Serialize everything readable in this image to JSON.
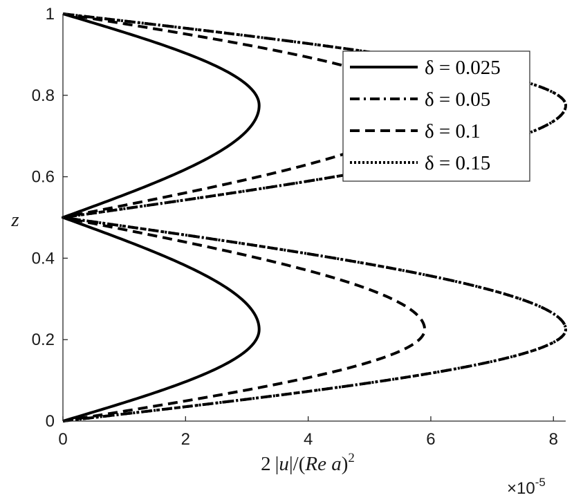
{
  "chart_data": {
    "type": "line",
    "title": "",
    "xlabel": "2|u|/(Re a)^2",
    "ylabel": "z",
    "x_multiplier_label": "×10",
    "x_multiplier_exponent": "-5",
    "xlim": [
      0,
      8.2
    ],
    "ylim": [
      0,
      1
    ],
    "xticks": [
      0,
      2,
      4,
      6,
      8
    ],
    "yticks": [
      0,
      0.2,
      0.4,
      0.6,
      0.8,
      1
    ],
    "grid": false,
    "legend_position": "top-right",
    "colors": {
      "line": "#000000",
      "axis": "#262626"
    },
    "series": [
      {
        "name": "δ = 0.025",
        "style": "solid",
        "peak_lower": {
          "x": 3.2,
          "z": 0.225
        },
        "peak_upper": {
          "x": 3.2,
          "z": 0.775
        }
      },
      {
        "name": "δ = 0.05",
        "style": "dashdot",
        "peak_lower": {
          "x": 8.2,
          "z": 0.225
        },
        "peak_upper": {
          "x": 8.2,
          "z": 0.775
        }
      },
      {
        "name": "δ = 0.1",
        "style": "dashed",
        "peak_lower": {
          "x": 5.9,
          "z": 0.225
        },
        "peak_upper": {
          "x": 5.9,
          "z": 0.775
        }
      },
      {
        "name": "δ = 0.15",
        "style": "dotted",
        "peak_lower": {
          "x": 8.2,
          "z": 0.225
        },
        "peak_upper": {
          "x": 8.2,
          "z": 0.775
        }
      }
    ]
  }
}
